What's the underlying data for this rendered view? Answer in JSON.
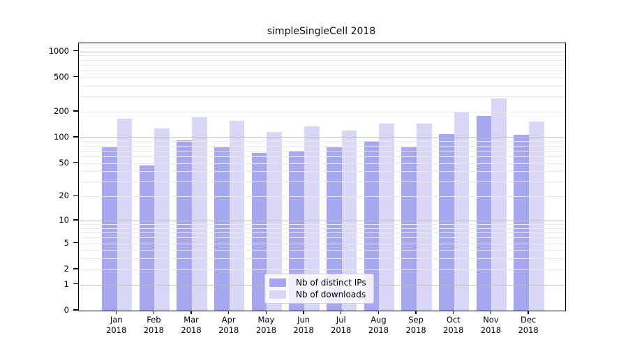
{
  "title": "simpleSingleCell 2018",
  "colors": {
    "ips_bar": "#a7a7f0",
    "downloads_bar": "#d9d9f7",
    "grid_major": "#bcbcbc",
    "grid_minor": "#e9e9e9",
    "axis": "#000000"
  },
  "legend": {
    "items": [
      {
        "label": "Nb of distinct IPs",
        "series": "ips_bar"
      },
      {
        "label": "Nb of downloads",
        "series": "downloads_bar"
      }
    ]
  },
  "y_axis": {
    "ticks": [
      0,
      1,
      2,
      5,
      10,
      20,
      50,
      100,
      200,
      500,
      1000
    ],
    "major_gridlines": [
      1,
      10,
      100,
      1000
    ],
    "scale": "symlog"
  },
  "chart_data": {
    "type": "bar",
    "title": "simpleSingleCell 2018",
    "xlabel": "",
    "ylabel": "",
    "scale": "symlog (position proportional to log(1+value))",
    "ylim": [
      0,
      1240
    ],
    "grid": true,
    "legend_position": "bottom-center-inside",
    "categories": [
      "Jan 2018",
      "Feb 2018",
      "Mar 2018",
      "Apr 2018",
      "May 2018",
      "Jun 2018",
      "Jul 2018",
      "Aug 2018",
      "Sep 2018",
      "Oct 2018",
      "Nov 2018",
      "Dec 2018"
    ],
    "series": [
      {
        "name": "Nb of distinct IPs",
        "values": [
          76,
          47,
          92,
          76,
          66,
          70,
          77,
          90,
          76,
          109,
          180,
          108
        ]
      },
      {
        "name": "Nb of downloads",
        "values": [
          164,
          128,
          171,
          157,
          116,
          135,
          120,
          144,
          145,
          200,
          285,
          154
        ]
      }
    ]
  }
}
